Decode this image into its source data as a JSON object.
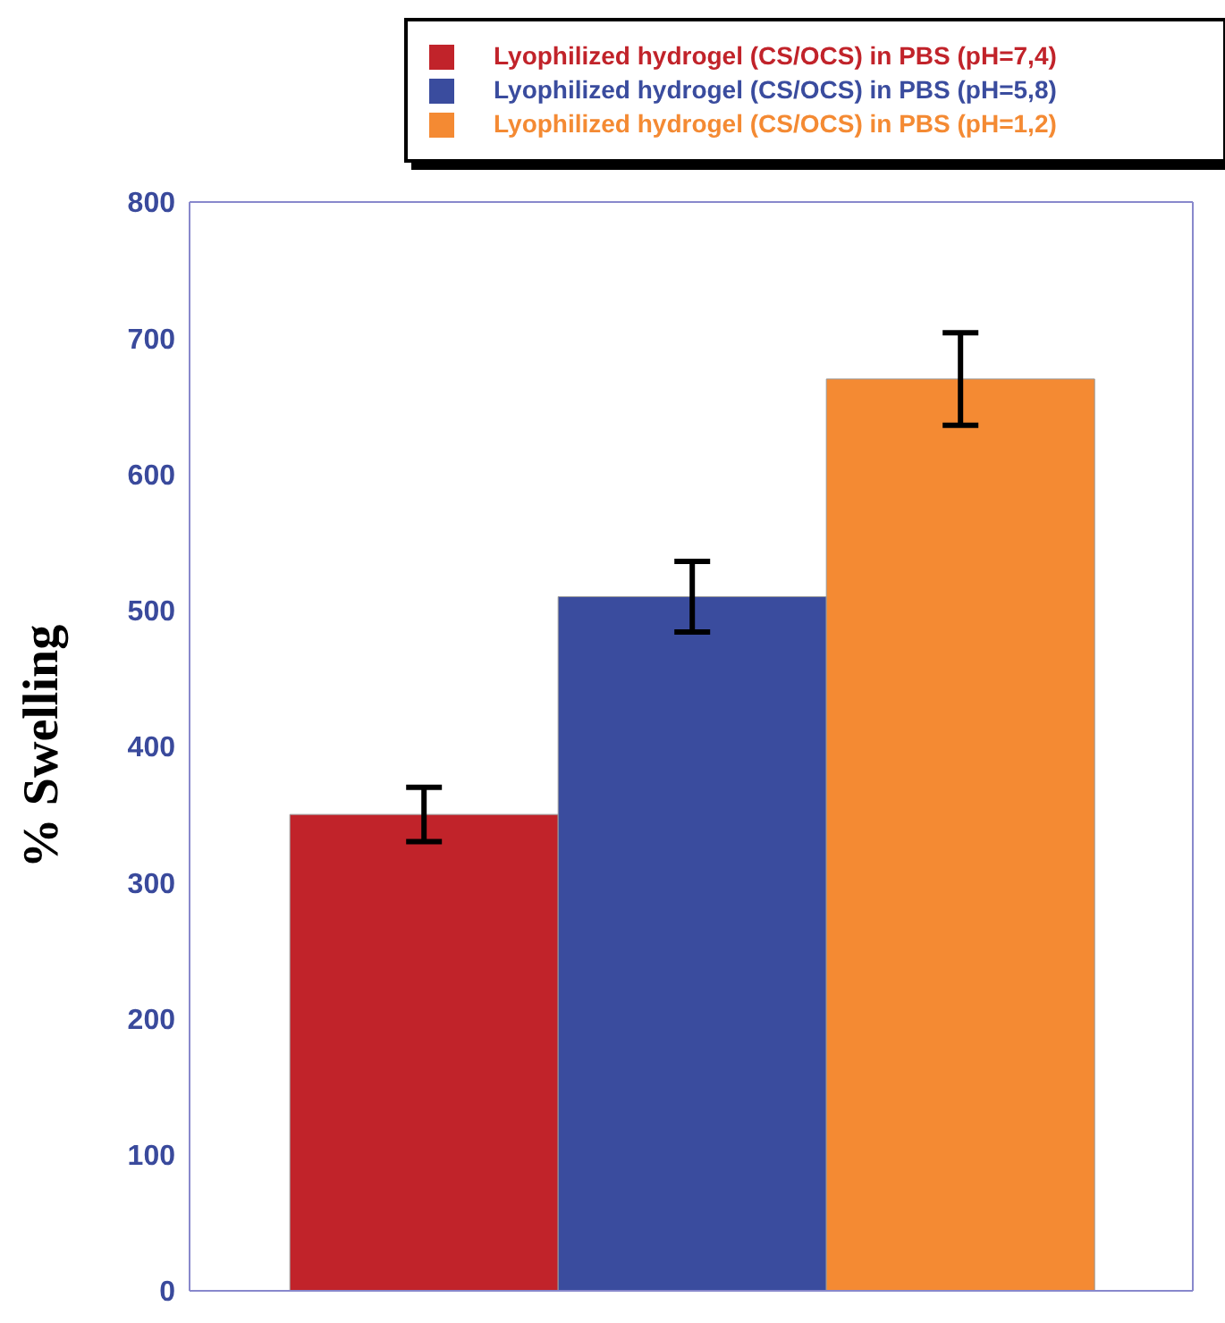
{
  "chart_data": {
    "type": "bar",
    "ylabel": "% Swelling",
    "categories": [
      null
    ],
    "series": [
      {
        "name": "Lyophilized hydrogel (CS/OCS) in PBS (pH=7,4)",
        "color": "#c1232a",
        "values": [
          350
        ],
        "errors": [
          20
        ]
      },
      {
        "name": "Lyophilized hydrogel (CS/OCS) in PBS (pH=5,8)",
        "color": "#3a4c9e",
        "values": [
          510
        ],
        "errors": [
          26
        ]
      },
      {
        "name": "Lyophilized hydrogel (CS/OCS) in PBS (pH=1,2)",
        "color": "#f48a33",
        "values": [
          670
        ],
        "errors": [
          34
        ]
      }
    ],
    "ylim": [
      0,
      800
    ],
    "yticks": [
      0,
      100,
      200,
      300,
      400,
      500,
      600,
      700,
      800
    ],
    "legend": "top right"
  }
}
